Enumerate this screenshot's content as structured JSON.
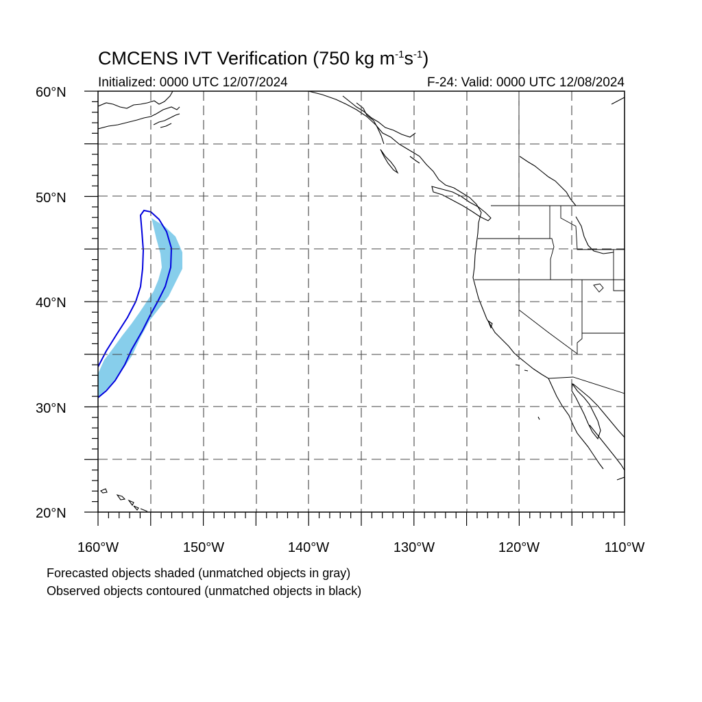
{
  "title": {
    "main": "CMCENS IVT Verification (750 kg m",
    "sup1": "-1",
    "mid": "s",
    "sup2": "-1",
    "end": ")"
  },
  "subtitle": {
    "initialized": "Initialized: 0000 UTC 12/07/2024",
    "valid": "F-24: Valid: 0000 UTC 12/08/2024"
  },
  "map": {
    "lon_range": [
      -160,
      -110
    ],
    "lat_range": [
      20,
      60
    ],
    "lat_labels": [
      "60°N",
      "50°N",
      "40°N",
      "30°N",
      "20°N"
    ],
    "lon_labels": [
      "160°W",
      "150°W",
      "140°W",
      "130°W",
      "120°W",
      "110°W"
    ],
    "grid": "dashed every 5°",
    "colors": {
      "forecast_shade": "#87ceeb",
      "observed_contour": "#0000dd",
      "coastline": "#000000",
      "grid": "#555555"
    }
  },
  "legend": {
    "forecast": "Forecasted objects shaded (unmatched objects in gray)",
    "observed": "Observed objects contoured (unmatched objects in black)"
  }
}
